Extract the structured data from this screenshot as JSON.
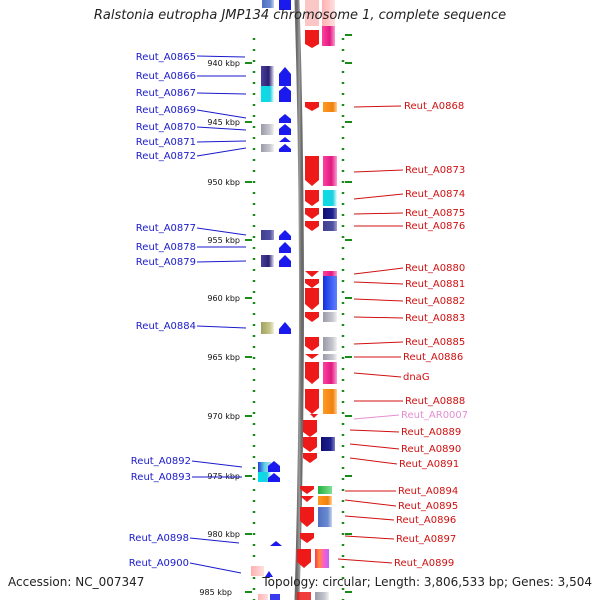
{
  "title": "Ralstonia eutropha JMP134 chromosome 1, complete sequence",
  "footer": {
    "accession": "Accession: NC_007347",
    "summary": "Topology: circular; Length: 3,806,533 bp; Genes: 3,504"
  },
  "colors": {
    "left_label": "#1a1acc",
    "right_label": "#d01010",
    "right_label_faint": "#e58ed2",
    "backbone": "#888888",
    "tick": "#1a8a1a",
    "scale_text": "#111111"
  },
  "scale_labels": [
    "940 kbp",
    "945 kbp",
    "950 kbp",
    "955 kbp",
    "960 kbp",
    "965 kbp",
    "970 kbp",
    "975 kbp",
    "980 kbp",
    "985 kbp"
  ],
  "left_genes": [
    "Reut_A0865",
    "Reut_A0866",
    "Reut_A0867",
    "Reut_A0869",
    "Reut_A0870",
    "Reut_A0871",
    "Reut_A0872",
    "Reut_A0877",
    "Reut_A0878",
    "Reut_A0879",
    "Reut_A0884",
    "Reut_A0892",
    "Reut_A0893",
    "Reut_A0898",
    "Reut_A0900"
  ],
  "right_genes": [
    "Reut_A0868",
    "Reut_A0873",
    "Reut_A0874",
    "Reut_A0875",
    "Reut_A0876",
    "Reut_A0880",
    "Reut_A0881",
    "Reut_A0882",
    "Reut_A0883",
    "Reut_A0885",
    "Reut_A0886",
    "dnaG",
    "Reut_A0888",
    "Reut_AR0007",
    "Reut_A0889",
    "Reut_A0890",
    "Reut_A0891",
    "Reut_A0894",
    "Reut_A0895",
    "Reut_A0896",
    "Reut_A0897",
    "Reut_A0899"
  ]
}
